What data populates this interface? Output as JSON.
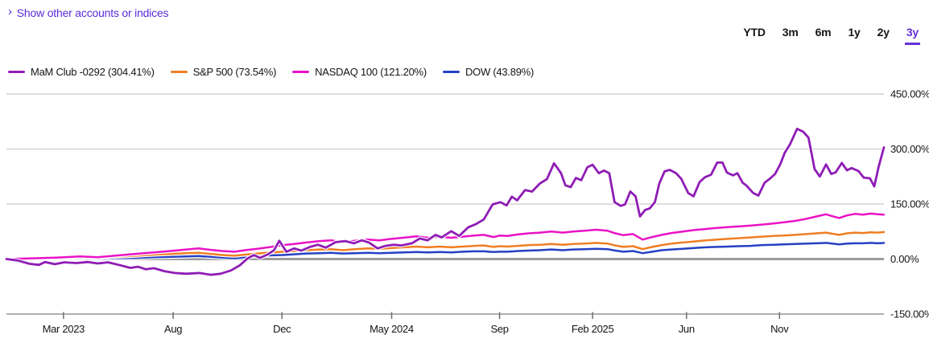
{
  "header": {
    "link_label": "Show other accounts or indices",
    "link_chevron": "›"
  },
  "range_selector": {
    "options": [
      "YTD",
      "3m",
      "6m",
      "1y",
      "2y",
      "3y"
    ],
    "selected": "3y"
  },
  "colors": {
    "link_purple": "#5a2bd8",
    "selected_range_purple": "#6230d9",
    "text": "#141414",
    "gridline": "#d2d2d2",
    "zero_line": "#9c9c9c",
    "axis_line": "#b0b0b0",
    "tick_mark": "#6f6f6f"
  },
  "chart_data": {
    "type": "line",
    "title": "",
    "xlabel": "",
    "ylabel": "",
    "ylim": [
      -150,
      450
    ],
    "grid": "horizontal",
    "legend_position": "top-left",
    "y_ticks": [
      {
        "value": 450,
        "label": "450.00%"
      },
      {
        "value": 300,
        "label": "300.00%"
      },
      {
        "value": 150,
        "label": "150.00%"
      },
      {
        "value": 0,
        "label": "0.00%"
      },
      {
        "value": -150,
        "label": "-150.00%"
      }
    ],
    "x_ticks": [
      {
        "t": 0.065,
        "label": "Mar 2023"
      },
      {
        "t": 0.19,
        "label": "Aug"
      },
      {
        "t": 0.314,
        "label": "Dec"
      },
      {
        "t": 0.439,
        "label": "May 2024"
      },
      {
        "t": 0.562,
        "label": "Sep"
      },
      {
        "t": 0.668,
        "label": "Feb 2025"
      },
      {
        "t": 0.775,
        "label": "Jun"
      },
      {
        "t": 0.881,
        "label": "Nov"
      }
    ],
    "indices_x": [
      0,
      0.029,
      0.057,
      0.084,
      0.104,
      0.123,
      0.147,
      0.168,
      0.187,
      0.205,
      0.219,
      0.233,
      0.246,
      0.26,
      0.272,
      0.286,
      0.302,
      0.315,
      0.328,
      0.342,
      0.357,
      0.37,
      0.383,
      0.397,
      0.412,
      0.425,
      0.439,
      0.452,
      0.467,
      0.48,
      0.494,
      0.507,
      0.52,
      0.533,
      0.544,
      0.555,
      0.562,
      0.571,
      0.583,
      0.595,
      0.608,
      0.621,
      0.634,
      0.646,
      0.659,
      0.672,
      0.685,
      0.694,
      0.703,
      0.714,
      0.725,
      0.736,
      0.747,
      0.758,
      0.771,
      0.784,
      0.797,
      0.81,
      0.822,
      0.835,
      0.848,
      0.861,
      0.874,
      0.886,
      0.899,
      0.912,
      0.923,
      0.934,
      0.941,
      0.949,
      0.958,
      0.967,
      0.976,
      0.985,
      0.993,
      1
    ],
    "series": [
      {
        "name": "MaM Club -0292",
        "label": "MaM Club -0292 (304.41%)",
        "final_return_pct": 304.41,
        "color": "#8f1cb5",
        "points": [
          [
            0,
            0
          ],
          [
            0.013,
            -4
          ],
          [
            0.026,
            -13
          ],
          [
            0.037,
            -16
          ],
          [
            0.044,
            -8
          ],
          [
            0.055,
            -14
          ],
          [
            0.066,
            -9
          ],
          [
            0.08,
            -11
          ],
          [
            0.093,
            -8
          ],
          [
            0.104,
            -12
          ],
          [
            0.116,
            -9
          ],
          [
            0.13,
            -17
          ],
          [
            0.141,
            -24
          ],
          [
            0.15,
            -21
          ],
          [
            0.159,
            -28
          ],
          [
            0.168,
            -25
          ],
          [
            0.18,
            -33
          ],
          [
            0.192,
            -38
          ],
          [
            0.205,
            -40
          ],
          [
            0.22,
            -38
          ],
          [
            0.233,
            -43
          ],
          [
            0.244,
            -40
          ],
          [
            0.256,
            -31
          ],
          [
            0.266,
            -17
          ],
          [
            0.275,
            2
          ],
          [
            0.282,
            11
          ],
          [
            0.289,
            3
          ],
          [
            0.298,
            13
          ],
          [
            0.305,
            24
          ],
          [
            0.311,
            50
          ],
          [
            0.319,
            20
          ],
          [
            0.328,
            29
          ],
          [
            0.336,
            23
          ],
          [
            0.346,
            33
          ],
          [
            0.355,
            39
          ],
          [
            0.364,
            31
          ],
          [
            0.375,
            46
          ],
          [
            0.386,
            49
          ],
          [
            0.396,
            43
          ],
          [
            0.405,
            51
          ],
          [
            0.413,
            45
          ],
          [
            0.423,
            29
          ],
          [
            0.432,
            36
          ],
          [
            0.441,
            39
          ],
          [
            0.45,
            37
          ],
          [
            0.462,
            43
          ],
          [
            0.471,
            56
          ],
          [
            0.48,
            51
          ],
          [
            0.489,
            66
          ],
          [
            0.496,
            59
          ],
          [
            0.507,
            76
          ],
          [
            0.516,
            63
          ],
          [
            0.526,
            86
          ],
          [
            0.535,
            95
          ],
          [
            0.544,
            108
          ],
          [
            0.554,
            149
          ],
          [
            0.563,
            155
          ],
          [
            0.57,
            146
          ],
          [
            0.576,
            170
          ],
          [
            0.582,
            160
          ],
          [
            0.591,
            188
          ],
          [
            0.599,
            184
          ],
          [
            0.608,
            206
          ],
          [
            0.616,
            218
          ],
          [
            0.624,
            261
          ],
          [
            0.632,
            234
          ],
          [
            0.637,
            201
          ],
          [
            0.643,
            196
          ],
          [
            0.649,
            221
          ],
          [
            0.655,
            215
          ],
          [
            0.662,
            250
          ],
          [
            0.668,
            257
          ],
          [
            0.675,
            234
          ],
          [
            0.681,
            241
          ],
          [
            0.687,
            234
          ],
          [
            0.693,
            155
          ],
          [
            0.7,
            145
          ],
          [
            0.705,
            149
          ],
          [
            0.711,
            184
          ],
          [
            0.717,
            171
          ],
          [
            0.722,
            116
          ],
          [
            0.728,
            134
          ],
          [
            0.733,
            138
          ],
          [
            0.739,
            155
          ],
          [
            0.744,
            206
          ],
          [
            0.75,
            239
          ],
          [
            0.756,
            243
          ],
          [
            0.763,
            234
          ],
          [
            0.769,
            219
          ],
          [
            0.777,
            180
          ],
          [
            0.783,
            171
          ],
          [
            0.79,
            210
          ],
          [
            0.796,
            223
          ],
          [
            0.803,
            230
          ],
          [
            0.81,
            263
          ],
          [
            0.816,
            263
          ],
          [
            0.821,
            236
          ],
          [
            0.828,
            228
          ],
          [
            0.833,
            234
          ],
          [
            0.839,
            208
          ],
          [
            0.843,
            201
          ],
          [
            0.851,
            180
          ],
          [
            0.857,
            173
          ],
          [
            0.864,
            208
          ],
          [
            0.87,
            219
          ],
          [
            0.876,
            232
          ],
          [
            0.882,
            259
          ],
          [
            0.887,
            290
          ],
          [
            0.893,
            313
          ],
          [
            0.901,
            355
          ],
          [
            0.908,
            347
          ],
          [
            0.914,
            331
          ],
          [
            0.921,
            245
          ],
          [
            0.927,
            225
          ],
          [
            0.934,
            258
          ],
          [
            0.94,
            232
          ],
          [
            0.945,
            236
          ],
          [
            0.952,
            262
          ],
          [
            0.958,
            242
          ],
          [
            0.963,
            248
          ],
          [
            0.971,
            240
          ],
          [
            0.977,
            222
          ],
          [
            0.984,
            220
          ],
          [
            0.989,
            198
          ],
          [
            0.994,
            252
          ],
          [
            1,
            304.41
          ]
        ]
      },
      {
        "name": "S&P 500",
        "label": "S&P 500 (73.54%)",
        "final_return_pct": 73.54,
        "color": "#f07e23",
        "x_ref": "indices_x",
        "values": [
          0,
          1,
          3,
          5,
          3,
          6,
          9,
          12,
          14,
          16,
          17,
          14,
          11,
          9,
          12,
          15,
          18,
          20,
          22,
          24,
          26,
          27,
          24,
          27,
          29,
          28,
          30,
          32,
          34,
          32,
          34,
          32,
          34,
          36,
          37,
          33,
          35,
          34,
          36,
          38,
          39,
          41,
          39,
          41,
          42,
          44,
          42,
          37,
          33,
          35,
          27,
          33,
          38,
          42,
          45,
          48,
          51,
          53,
          55,
          57,
          59,
          61,
          63,
          64,
          66,
          68,
          70,
          72,
          69,
          66,
          70,
          72,
          71,
          73,
          72,
          73.54
        ]
      },
      {
        "name": "NASDAQ 100",
        "label": "NASDAQ 100 (121.20%)",
        "final_return_pct": 121.2,
        "color": "#e913c6",
        "x_ref": "indices_x",
        "values": [
          0,
          2,
          4,
          7,
          5,
          9,
          14,
          18,
          22,
          26,
          29,
          25,
          22,
          20,
          24,
          28,
          33,
          38,
          41,
          45,
          49,
          51,
          46,
          50,
          53,
          51,
          55,
          58,
          62,
          58,
          61,
          58,
          61,
          64,
          66,
          60,
          64,
          63,
          67,
          70,
          72,
          75,
          72,
          75,
          77,
          80,
          77,
          70,
          65,
          68,
          53,
          60,
          66,
          71,
          75,
          79,
          82,
          85,
          87,
          89,
          91,
          94,
          97,
          100,
          104,
          110,
          116,
          122,
          117,
          112,
          119,
          123,
          121,
          124,
          122,
          121.2
        ]
      },
      {
        "name": "DOW",
        "label": "DOW (43.89%)",
        "final_return_pct": 43.89,
        "color": "#2540c4",
        "x_ref": "indices_x",
        "values": [
          0,
          0,
          1,
          2,
          0,
          2,
          3,
          5,
          6,
          7,
          8,
          6,
          4,
          2,
          5,
          8,
          10,
          11,
          13,
          15,
          16,
          17,
          15,
          16,
          17,
          16,
          17,
          18,
          19,
          18,
          19,
          18,
          20,
          21,
          21,
          19,
          20,
          20,
          22,
          23,
          24,
          26,
          24,
          26,
          27,
          28,
          27,
          23,
          20,
          22,
          16,
          20,
          24,
          26,
          28,
          30,
          32,
          33,
          34,
          35,
          36,
          38,
          39,
          40,
          41,
          42,
          43,
          44,
          42,
          40,
          42,
          43,
          43,
          44,
          43,
          43.89
        ]
      }
    ]
  }
}
